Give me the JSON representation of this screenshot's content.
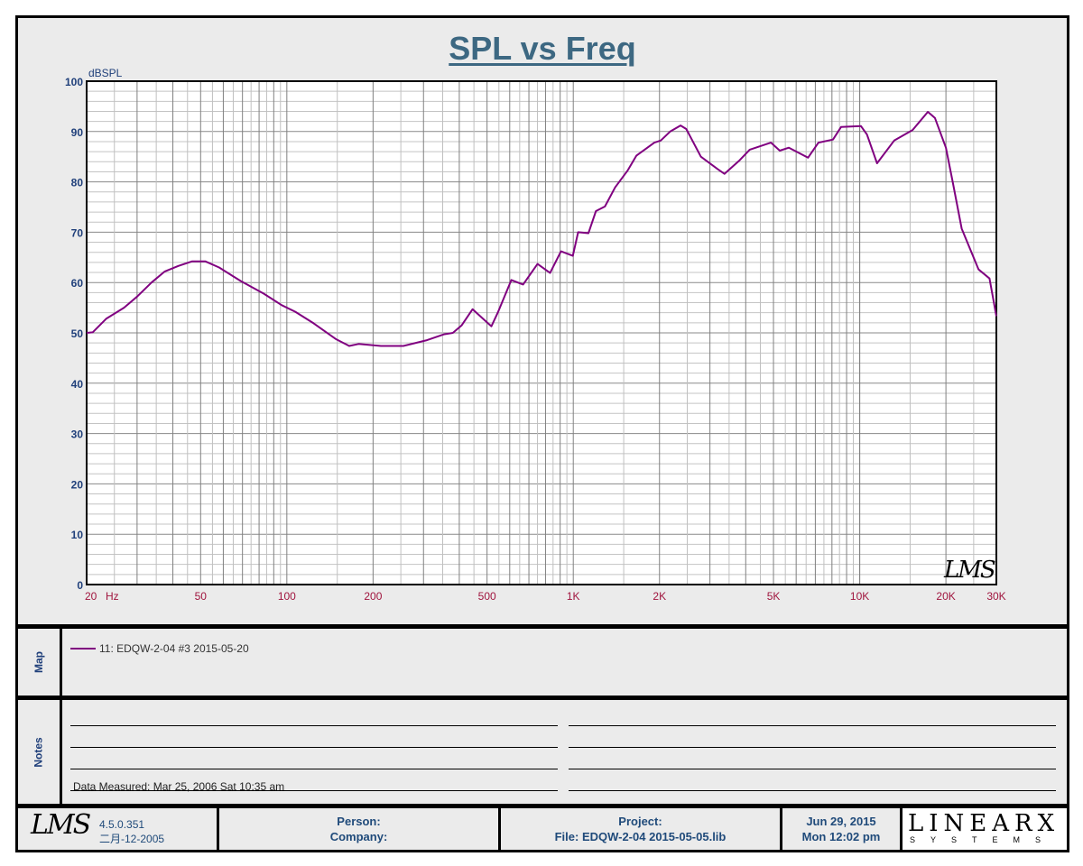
{
  "chart_data": {
    "type": "line",
    "title": "SPL vs Freq",
    "ylabel": "dBSPL",
    "xlabel_unit": "Hz",
    "x_scale": "log",
    "xlim": [
      20,
      30000
    ],
    "ylim": [
      0,
      100
    ],
    "grid": true,
    "y_ticks": [
      "0",
      "10",
      "20",
      "30",
      "40",
      "50",
      "60",
      "70",
      "80",
      "90",
      "100"
    ],
    "x_ticks": [
      {
        "value": 20,
        "label": "20"
      },
      {
        "value": 50,
        "label": "50"
      },
      {
        "value": 100,
        "label": "100"
      },
      {
        "value": 200,
        "label": "200"
      },
      {
        "value": 500,
        "label": "500"
      },
      {
        "value": 1000,
        "label": "1K"
      },
      {
        "value": 2000,
        "label": "2K"
      },
      {
        "value": 5000,
        "label": "5K"
      },
      {
        "value": 10000,
        "label": "10K"
      },
      {
        "value": 20000,
        "label": "20K"
      },
      {
        "value": 30000,
        "label": "30K"
      }
    ],
    "series": [
      {
        "name": "11: EDQW-2-04  #3   2015-05-20",
        "color": "#800080",
        "x": [
          20,
          21,
          23.4,
          27,
          30,
          33.7,
          37.5,
          41.8,
          46.6,
          52,
          58,
          69,
          83,
          96,
          107,
          124,
          148,
          165,
          178,
          213,
          255,
          306,
          353,
          380,
          408,
          445,
          480,
          518,
          545,
          608,
          668,
          750,
          830,
          906,
          996,
          1040,
          1130,
          1200,
          1290,
          1400,
          1550,
          1660,
          1920,
          2020,
          2180,
          2370,
          2480,
          2790,
          3200,
          3370,
          3810,
          4130,
          4900,
          5260,
          5660,
          6600,
          7180,
          8070,
          8610,
          10100,
          10600,
          11500,
          13200,
          15300,
          17300,
          18300,
          20000,
          21100,
          22700,
          26000,
          28400,
          30000
        ],
        "y": [
          50,
          50.1,
          52.8,
          55,
          57.2,
          60,
          62.2,
          63.3,
          64.2,
          64.2,
          63,
          60.3,
          57.8,
          55.5,
          54.2,
          51.9,
          48.8,
          47.4,
          47.8,
          47.4,
          47.4,
          48.5,
          49.7,
          50,
          51.5,
          54.7,
          53,
          51.3,
          54,
          60.5,
          59.6,
          63.7,
          61.9,
          66.2,
          65.3,
          70,
          69.8,
          74.2,
          75.1,
          78.9,
          82.3,
          85.2,
          87.8,
          88.2,
          90,
          91.2,
          90.5,
          85,
          82.5,
          81.6,
          84.3,
          86.4,
          87.8,
          86.2,
          86.8,
          84.8,
          87.8,
          88.4,
          90.9,
          91.1,
          89.4,
          83.7,
          88.2,
          90.3,
          93.9,
          92.7,
          86.8,
          80.1,
          70.7,
          62.6,
          60.8,
          53.3
        ]
      }
    ]
  },
  "watermark": "LMS",
  "map": {
    "label": "Map",
    "entry": "11: EDQW-2-04  #3   2015-05-20"
  },
  "notes": {
    "label": "Notes",
    "measured": "Data Measured: Mar 25, 2006  Sat 10:35 am"
  },
  "footer": {
    "logo": "LMS",
    "version": "4.5.0.351",
    "build_date": "二月-12-2005",
    "person": "Person:",
    "company": "Company:",
    "project": "Project:",
    "file": "File: EDQW-2-04   2015-05-05.lib",
    "date": "Jun 29, 2015",
    "time": "Mon 12:02 pm",
    "brand": "LINEARX",
    "brand_sub": "SYSTEMS"
  },
  "colors": {
    "curve": "#800080",
    "title": "#3d6882",
    "y_labels": "#1f3f7a",
    "x_labels": "#a0153e"
  }
}
